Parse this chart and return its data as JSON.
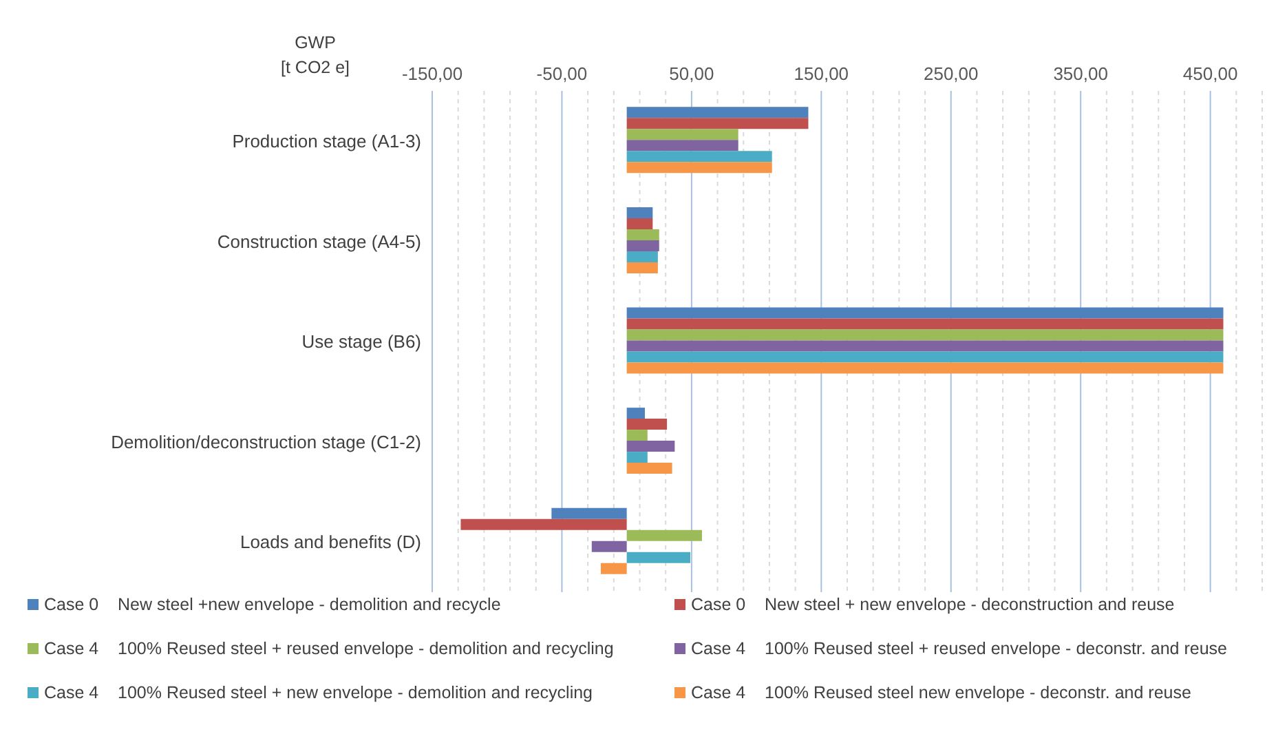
{
  "chart_data": {
    "type": "bar",
    "orientation": "horizontal",
    "xlabel": "GWP\n[t CO2 e]",
    "categories": [
      "Production stage (A1-3)",
      "Construction stage (A4-5)",
      "Use stage (B6)",
      "Demolition/deconstruction stage (C1-2)",
      "Loads and benefits (D)"
    ],
    "series": [
      {
        "name": "Case 0    New steel +new envelope - demolition and recycle",
        "color": "#4f81bd",
        "values": [
          140,
          20,
          460,
          14,
          -58
        ]
      },
      {
        "name": "Case 0    New steel + new envelope - deconstruction and reuse",
        "color": "#c0504d",
        "values": [
          140,
          20,
          460,
          31,
          -128
        ]
      },
      {
        "name": "Case 4    100% Reused steel + reused envelope - demolition and recycling",
        "color": "#9bbb59",
        "values": [
          86,
          25,
          460,
          16,
          58
        ]
      },
      {
        "name": "Case 4    100% Reused steel + reused envelope - deconstr. and reuse",
        "color": "#8064a2",
        "values": [
          86,
          25,
          460,
          37,
          -27
        ]
      },
      {
        "name": "Case 4    100% Reused steel + new envelope - demolition and recycling",
        "color": "#4bacc6",
        "values": [
          112,
          24,
          460,
          16,
          49
        ]
      },
      {
        "name": "Case 4    100% Reused steel new envelope - deconstr. and reuse",
        "color": "#f79646",
        "values": [
          112,
          24,
          460,
          35,
          -20
        ]
      }
    ],
    "xlim": [
      -150,
      490
    ],
    "xticks": [
      {
        "value": -150,
        "label": "-150,00"
      },
      {
        "value": -130,
        "label": null
      },
      {
        "value": -110,
        "label": null
      },
      {
        "value": -90,
        "label": null
      },
      {
        "value": -70,
        "label": null
      },
      {
        "value": -50,
        "label": "-50,00"
      },
      {
        "value": -30,
        "label": null
      },
      {
        "value": -10,
        "label": null
      },
      {
        "value": 10,
        "label": null
      },
      {
        "value": 30,
        "label": null
      },
      {
        "value": 50,
        "label": "50,00"
      },
      {
        "value": 70,
        "label": null
      },
      {
        "value": 90,
        "label": null
      },
      {
        "value": 110,
        "label": null
      },
      {
        "value": 130,
        "label": null
      },
      {
        "value": 150,
        "label": "150,00"
      },
      {
        "value": 170,
        "label": null
      },
      {
        "value": 190,
        "label": null
      },
      {
        "value": 210,
        "label": null
      },
      {
        "value": 230,
        "label": null
      },
      {
        "value": 250,
        "label": "250,00"
      },
      {
        "value": 270,
        "label": null
      },
      {
        "value": 290,
        "label": null
      },
      {
        "value": 310,
        "label": null
      },
      {
        "value": 330,
        "label": null
      },
      {
        "value": 350,
        "label": "350,00"
      },
      {
        "value": 370,
        "label": null
      },
      {
        "value": 390,
        "label": null
      },
      {
        "value": 410,
        "label": null
      },
      {
        "value": 430,
        "label": null
      },
      {
        "value": 450,
        "label": "450,00"
      },
      {
        "value": 470,
        "label": null
      },
      {
        "value": 490,
        "label": null
      }
    ],
    "grid": "x",
    "legend": "bottom"
  }
}
